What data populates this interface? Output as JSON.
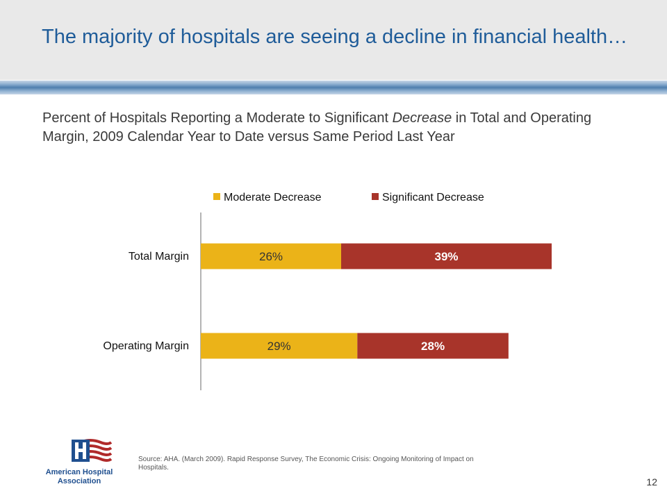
{
  "slide": {
    "title": "The majority of hospitals are seeing a decline in financial health…",
    "subtitle_parts": [
      "Percent of Hospitals Reporting a Moderate to Significant ",
      "Decrease",
      " in Total and Operating Margin, 2009 Calendar Year to Date versus Same Period Last Year"
    ],
    "source": "Source:  AHA. (March 2009).  Rapid Response Survey, The Economic Crisis:  Ongoing Monitoring of Impact on Hospitals.",
    "page_number": "12",
    "logo": {
      "text": [
        "American Hospital",
        "Association"
      ],
      "icon": "hospital-flag-logo"
    }
  },
  "chart_data": {
    "type": "bar",
    "orientation": "horizontal",
    "stacked": true,
    "title": "",
    "xlabel": "",
    "ylabel": "",
    "xlim": [
      0,
      100
    ],
    "grid": false,
    "legend_position": "top",
    "categories": [
      "Total Margin",
      "Operating Margin"
    ],
    "series": [
      {
        "name": "Moderate Decrease",
        "values": [
          26,
          29
        ],
        "labels": [
          "26%",
          "29%"
        ],
        "color": "#ebb318",
        "label_color": "#333333",
        "label_weight": "normal"
      },
      {
        "name": "Significant Decrease",
        "values": [
          39,
          28
        ],
        "labels": [
          "39%",
          "28%"
        ],
        "color": "#a8342a",
        "label_color": "#ffffff",
        "label_weight": "bold"
      }
    ]
  }
}
